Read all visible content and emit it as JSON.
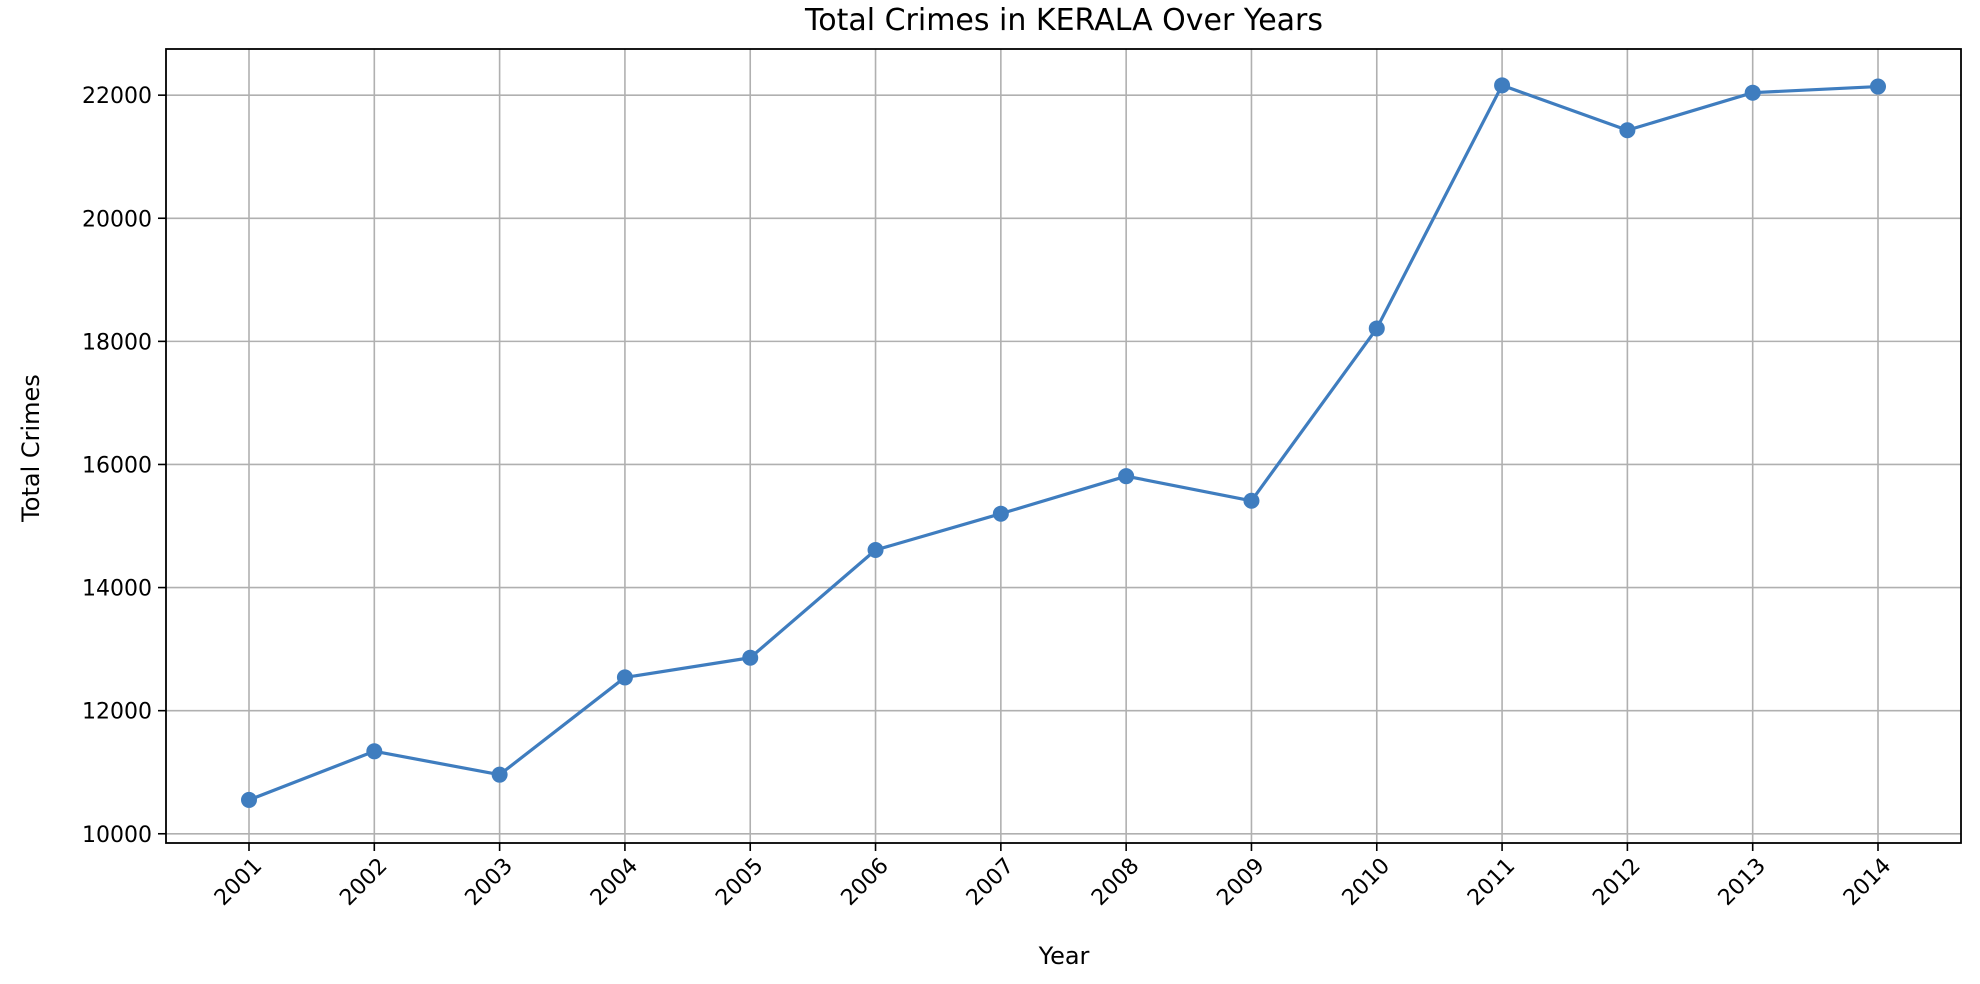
{
  "chart_data": {
    "type": "line",
    "title": "Total Crimes in KERALA Over Years",
    "xlabel": "Year",
    "ylabel": "Total Crimes",
    "x": [
      "2001",
      "2002",
      "2003",
      "2004",
      "2005",
      "2006",
      "2007",
      "2008",
      "2009",
      "2010",
      "2011",
      "2012",
      "2013",
      "2014"
    ],
    "series": [
      {
        "values": [
          10550,
          11340,
          10960,
          12540,
          12860,
          14610,
          15200,
          15810,
          15410,
          18210,
          22160,
          21430,
          22040,
          22140
        ]
      }
    ],
    "yticks": [
      10000,
      12000,
      14000,
      16000,
      18000,
      20000,
      22000
    ],
    "ylim": [
      9850,
      22750
    ],
    "grid": true,
    "colors": {
      "line": "#3f7dbf",
      "marker": "#3f7dbf"
    }
  }
}
